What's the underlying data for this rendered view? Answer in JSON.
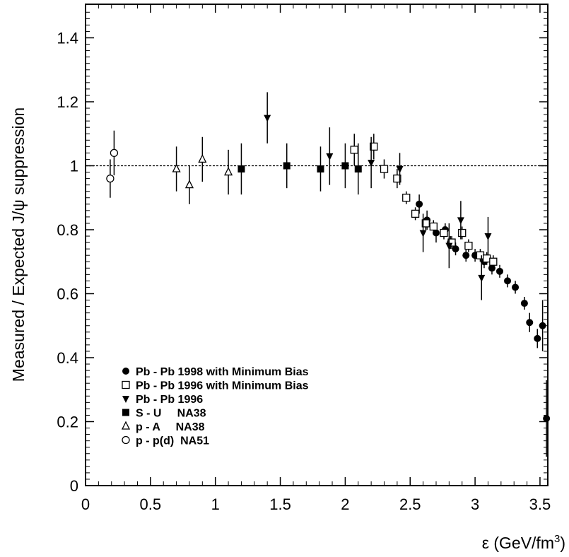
{
  "chart_data": {
    "type": "scatter",
    "title": "",
    "xlabel": "ε (GeV/fm",
    "xlabel_sup": "3",
    "xlabel_tail": ")",
    "ylabel": "Measured / Expected  J/ψ suppression",
    "xlim": [
      0,
      3.8
    ],
    "ylim": [
      0,
      1.5
    ],
    "x_ticks": [
      "0",
      "0.5",
      "1",
      "1.5",
      "2",
      "2.5",
      "3",
      "3.5"
    ],
    "y_ticks": [
      "0",
      "0.2",
      "0.4",
      "0.6",
      "0.8",
      "1",
      "1.2",
      "1.4"
    ],
    "reference_line": {
      "y": 1.0,
      "style": "dashed"
    },
    "grid": false,
    "legend_position": "bottom-left",
    "series": [
      {
        "name": "Pb - Pb 1998 with Minimum Bias",
        "marker": "filled-circle",
        "points": [
          {
            "x": 2.57,
            "y": 0.88,
            "err": 0.03
          },
          {
            "x": 2.63,
            "y": 0.83,
            "err": 0.03
          },
          {
            "x": 2.7,
            "y": 0.79,
            "err": 0.03
          },
          {
            "x": 2.77,
            "y": 0.8,
            "err": 0.02
          },
          {
            "x": 2.81,
            "y": 0.76,
            "err": 0.02
          },
          {
            "x": 2.85,
            "y": 0.74,
            "err": 0.02
          },
          {
            "x": 2.93,
            "y": 0.72,
            "err": 0.02
          },
          {
            "x": 3.0,
            "y": 0.72,
            "err": 0.02
          },
          {
            "x": 3.07,
            "y": 0.7,
            "err": 0.02
          },
          {
            "x": 3.13,
            "y": 0.68,
            "err": 0.02
          },
          {
            "x": 3.19,
            "y": 0.67,
            "err": 0.02
          },
          {
            "x": 3.25,
            "y": 0.64,
            "err": 0.02
          },
          {
            "x": 3.31,
            "y": 0.62,
            "err": 0.02
          },
          {
            "x": 3.38,
            "y": 0.57,
            "err": 0.02
          },
          {
            "x": 3.42,
            "y": 0.51,
            "err": 0.03
          },
          {
            "x": 3.48,
            "y": 0.46,
            "err": 0.03
          },
          {
            "x": 3.52,
            "y": 0.5,
            "err": 0.08
          },
          {
            "x": 3.55,
            "y": 0.21,
            "err": 0.12
          }
        ]
      },
      {
        "name": "Pb - Pb 1996 with Minimum Bias",
        "marker": "open-square",
        "points": [
          {
            "x": 2.07,
            "y": 1.05,
            "err": 0.05
          },
          {
            "x": 2.22,
            "y": 1.06,
            "err": 0.04
          },
          {
            "x": 2.3,
            "y": 0.99,
            "err": 0.03
          },
          {
            "x": 2.4,
            "y": 0.96,
            "err": 0.03
          },
          {
            "x": 2.47,
            "y": 0.9,
            "err": 0.02
          },
          {
            "x": 2.54,
            "y": 0.85,
            "err": 0.02
          },
          {
            "x": 2.62,
            "y": 0.82,
            "err": 0.02
          },
          {
            "x": 2.68,
            "y": 0.81,
            "err": 0.02
          },
          {
            "x": 2.76,
            "y": 0.79,
            "err": 0.02
          },
          {
            "x": 2.82,
            "y": 0.76,
            "err": 0.02
          },
          {
            "x": 2.9,
            "y": 0.79,
            "err": 0.02
          },
          {
            "x": 2.95,
            "y": 0.75,
            "err": 0.02
          },
          {
            "x": 3.04,
            "y": 0.72,
            "err": 0.02
          },
          {
            "x": 3.09,
            "y": 0.71,
            "err": 0.02
          },
          {
            "x": 3.14,
            "y": 0.7,
            "err": 0.02
          }
        ]
      },
      {
        "name": "Pb - Pb 1996",
        "marker": "filled-triangle-down",
        "points": [
          {
            "x": 1.4,
            "y": 1.15,
            "err": 0.08
          },
          {
            "x": 1.88,
            "y": 1.03,
            "err": 0.09
          },
          {
            "x": 2.2,
            "y": 1.01,
            "err": 0.08
          },
          {
            "x": 2.42,
            "y": 0.99,
            "err": 0.05
          },
          {
            "x": 2.6,
            "y": 0.79,
            "err": 0.06
          },
          {
            "x": 2.8,
            "y": 0.75,
            "err": 0.07
          },
          {
            "x": 2.89,
            "y": 0.83,
            "err": 0.06
          },
          {
            "x": 3.1,
            "y": 0.78,
            "err": 0.06
          },
          {
            "x": 3.05,
            "y": 0.65,
            "err": 0.07
          }
        ]
      },
      {
        "name": "S - U     NA38",
        "marker": "filled-square",
        "points": [
          {
            "x": 1.2,
            "y": 0.99,
            "err": 0.08
          },
          {
            "x": 1.55,
            "y": 1.0,
            "err": 0.07
          },
          {
            "x": 1.81,
            "y": 0.99,
            "err": 0.07
          },
          {
            "x": 2.0,
            "y": 1.0,
            "err": 0.07
          },
          {
            "x": 2.1,
            "y": 0.99,
            "err": 0.08
          }
        ]
      },
      {
        "name": "p - A     NA38",
        "marker": "open-triangle-up",
        "points": [
          {
            "x": 0.7,
            "y": 0.99,
            "err": 0.07
          },
          {
            "x": 0.8,
            "y": 0.94,
            "err": 0.06
          },
          {
            "x": 0.9,
            "y": 1.02,
            "err": 0.07
          },
          {
            "x": 1.1,
            "y": 0.98,
            "err": 0.07
          }
        ]
      },
      {
        "name": "p - p(d)  NA51",
        "marker": "open-circle",
        "points": [
          {
            "x": 0.19,
            "y": 0.96,
            "err": 0.06
          },
          {
            "x": 0.22,
            "y": 1.04,
            "err": 0.07
          }
        ]
      }
    ]
  }
}
